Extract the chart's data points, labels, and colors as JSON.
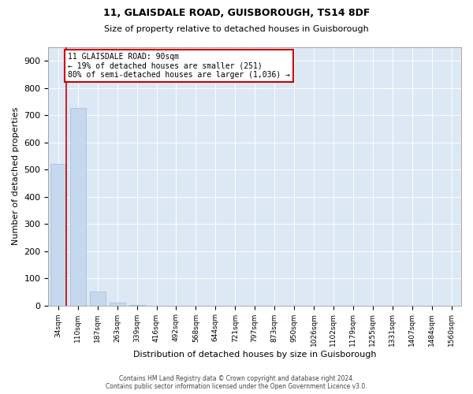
{
  "title1": "11, GLAISDALE ROAD, GUISBOROUGH, TS14 8DF",
  "title2": "Size of property relative to detached houses in Guisborough",
  "xlabel": "Distribution of detached houses by size in Guisborough",
  "ylabel": "Number of detached properties",
  "categories": [
    "34sqm",
    "110sqm",
    "187sqm",
    "263sqm",
    "339sqm",
    "416sqm",
    "492sqm",
    "568sqm",
    "644sqm",
    "721sqm",
    "797sqm",
    "873sqm",
    "950sqm",
    "1026sqm",
    "1102sqm",
    "1179sqm",
    "1255sqm",
    "1331sqm",
    "1407sqm",
    "1484sqm",
    "1560sqm"
  ],
  "values": [
    520,
    727,
    50,
    10,
    3,
    0,
    0,
    0,
    0,
    0,
    0,
    0,
    0,
    0,
    0,
    0,
    0,
    0,
    0,
    0,
    0
  ],
  "bar_color": "#c5d8ed",
  "bar_edge_color": "#9bbcd9",
  "annotation_line1": "11 GLAISDALE ROAD: 90sqm",
  "annotation_line2": "← 19% of detached houses are smaller (251)",
  "annotation_line3": "80% of semi-detached houses are larger (1,036) →",
  "annotation_box_facecolor": "#ffffff",
  "annotation_box_edgecolor": "#cc0000",
  "vline_color": "#cc0000",
  "ylim_max": 950,
  "yticks": [
    0,
    100,
    200,
    300,
    400,
    500,
    600,
    700,
    800,
    900
  ],
  "bg_color": "#ffffff",
  "plot_bg_color": "#dce8f4",
  "grid_color": "#ffffff",
  "footer_line1": "Contains HM Land Registry data © Crown copyright and database right 2024.",
  "footer_line2": "Contains public sector information licensed under the Open Government Licence v3.0."
}
